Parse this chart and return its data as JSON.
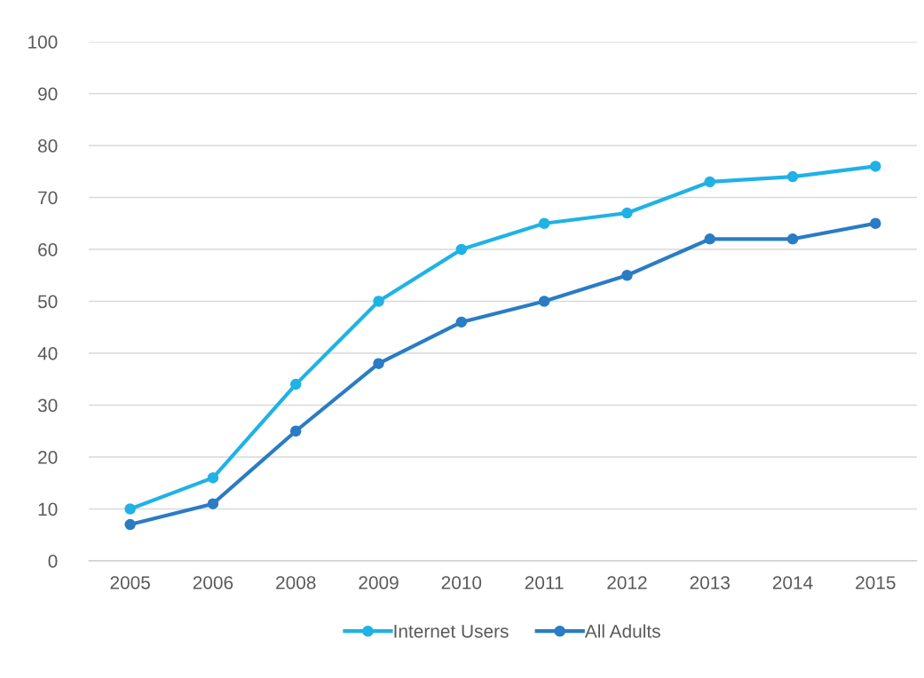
{
  "chart_data": {
    "type": "line",
    "categories": [
      "2005",
      "2006",
      "2008",
      "2009",
      "2010",
      "2011",
      "2012",
      "2013",
      "2014",
      "2015"
    ],
    "series": [
      {
        "name": "Internet Users",
        "color": "#1fb2e6",
        "values": [
          10,
          16,
          34,
          50,
          60,
          65,
          67,
          73,
          74,
          76
        ]
      },
      {
        "name": "All Adults",
        "color": "#2a7cc4",
        "values": [
          7,
          11,
          25,
          38,
          46,
          50,
          55,
          62,
          62,
          65
        ]
      }
    ],
    "ylim": [
      0,
      100
    ],
    "yticks": [
      0,
      10,
      20,
      30,
      40,
      50,
      60,
      70,
      80,
      90,
      100
    ],
    "grid": "y",
    "legend": "bottom",
    "marker": "circle",
    "line_style": "solid"
  }
}
